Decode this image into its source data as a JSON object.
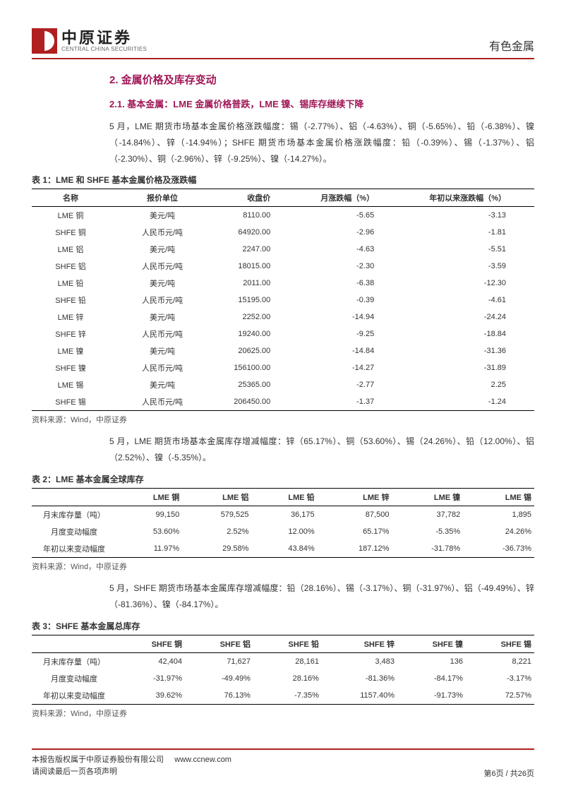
{
  "header": {
    "logo_cn": "中原证券",
    "logo_en": "CENTRAL CHINA SECURITIES",
    "sector": "有色金属"
  },
  "section": {
    "h2": "2. 金属价格及库存变动",
    "h3": "2.1. 基本金属：LME 金属价格普跌，LME 镍、锡库存继续下降",
    "p1": "5 月，LME 期货市场基本金属价格涨跌幅度：锡（-2.77%）、铝（-4.63%）、铜（-5.65%）、铅（-6.38%）、镍（-14.84%）、锌（-14.94%）；SHFE 期货市场基本金属价格涨跌幅度：铅（-0.39%）、锡（-1.37%）、铝（-2.30%）、铜（-2.96%）、锌（-9.25%）、镍（-14.27%）。",
    "p2": "5 月，LME 期货市场基本金属库存增减幅度：锌（65.17%）、铜（53.60%）、锡（24.26%）、铅（12.00%）、铝（2.52%）、镍（-5.35%）。",
    "p3": "5 月，SHFE 期货市场基本金属库存增减幅度：铅（28.16%）、锡（-3.17%）、铜（-31.97%）、铝（-49.49%）、锌（-81.36%）、镍（-84.17%）。"
  },
  "table1": {
    "title": "表 1：LME 和 SHFE 基本金属价格及涨跌幅",
    "cols": [
      "名称",
      "报价单位",
      "收盘价",
      "月涨跌幅（%）",
      "年初以来涨跌幅（%）"
    ],
    "rows": [
      [
        "LME 铜",
        "美元/吨",
        "8110.00",
        "-5.65",
        "-3.13"
      ],
      [
        "SHFE 铜",
        "人民币元/吨",
        "64920.00",
        "-2.96",
        "-1.81"
      ],
      [
        "LME 铝",
        "美元/吨",
        "2247.00",
        "-4.63",
        "-5.51"
      ],
      [
        "SHFE 铝",
        "人民币元/吨",
        "18015.00",
        "-2.30",
        "-3.59"
      ],
      [
        "LME 铅",
        "美元/吨",
        "2011.00",
        "-6.38",
        "-12.30"
      ],
      [
        "SHFE 铅",
        "人民币元/吨",
        "15195.00",
        "-0.39",
        "-4.61"
      ],
      [
        "LME 锌",
        "美元/吨",
        "2252.00",
        "-14.94",
        "-24.24"
      ],
      [
        "SHFE 锌",
        "人民币元/吨",
        "19240.00",
        "-9.25",
        "-18.84"
      ],
      [
        "LME 镍",
        "美元/吨",
        "20625.00",
        "-14.84",
        "-31.36"
      ],
      [
        "SHFE 镍",
        "人民币元/吨",
        "156100.00",
        "-14.27",
        "-31.89"
      ],
      [
        "LME 锡",
        "美元/吨",
        "25365.00",
        "-2.77",
        "2.25"
      ],
      [
        "SHFE 锡",
        "人民币元/吨",
        "206450.00",
        "-1.37",
        "-1.24"
      ]
    ],
    "source": "资料来源：Wind，中原证券"
  },
  "table2": {
    "title": "表 2：LME 基本金属全球库存",
    "cols": [
      "",
      "LME 铜",
      "LME 铝",
      "LME 铅",
      "LME 锌",
      "LME 镍",
      "LME 锡"
    ],
    "rows": [
      [
        "月末库存量（吨）",
        "99,150",
        "579,525",
        "36,175",
        "87,500",
        "37,782",
        "1,895"
      ],
      [
        "月度变动幅度",
        "53.60%",
        "2.52%",
        "12.00%",
        "65.17%",
        "-5.35%",
        "24.26%"
      ],
      [
        "年初以来变动幅度",
        "11.97%",
        "29.58%",
        "43.84%",
        "187.12%",
        "-31.78%",
        "-36.73%"
      ]
    ],
    "source": "资料来源：Wind，中原证券"
  },
  "table3": {
    "title": "表 3：SHFE 基本金属总库存",
    "cols": [
      "",
      "SHFE 铜",
      "SHFE 铝",
      "SHFE 铅",
      "SHFE 锌",
      "SHFE 镍",
      "SHFE 锡"
    ],
    "rows": [
      [
        "月末库存量（吨）",
        "42,404",
        "71,627",
        "28,161",
        "3,483",
        "136",
        "8,221"
      ],
      [
        "月度变动幅度",
        "-31.97%",
        "-49.49%",
        "28.16%",
        "-81.36%",
        "-84.17%",
        "-3.17%"
      ],
      [
        "年初以来变动幅度",
        "39.62%",
        "76.13%",
        "-7.35%",
        "1157.40%",
        "-91.73%",
        "72.57%"
      ]
    ],
    "source": "资料来源：Wind，中原证券"
  },
  "footer": {
    "copyright": "本报告版权属于中原证券股份有限公司",
    "url": "www.ccnew.com",
    "disclaimer": "请阅读最后一页各项声明",
    "page": "第6页  /  共26页"
  }
}
